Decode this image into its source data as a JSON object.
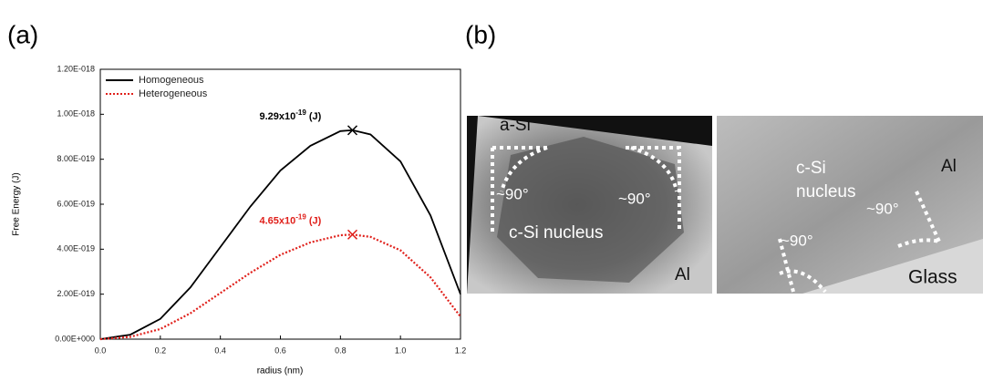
{
  "chart_data": {
    "type": "line",
    "panel_label": "(a)",
    "xlabel": "radius (nm)",
    "ylabel": "Free Energy (J)",
    "x": [
      0,
      0.1,
      0.2,
      0.3,
      0.4,
      0.5,
      0.6,
      0.7,
      0.8,
      0.84,
      0.9,
      1.0,
      1.1,
      1.2
    ],
    "series": [
      {
        "name": "Homogeneous",
        "color": "#000000",
        "dash": false,
        "values": [
          0,
          2e-20,
          9e-20,
          2.3e-19,
          4.1e-19,
          5.9e-19,
          7.5e-19,
          8.6e-19,
          9.25e-19,
          9.29e-19,
          9.1e-19,
          7.9e-19,
          5.5e-19,
          2e-19
        ]
      },
      {
        "name": "Heterogeneous",
        "color": "#e0201b",
        "dash": true,
        "values": [
          0,
          1e-20,
          4.5e-20,
          1.15e-19,
          2.05e-19,
          2.95e-19,
          3.75e-19,
          4.3e-19,
          4.62e-19,
          4.65e-19,
          4.55e-19,
          3.95e-19,
          2.75e-19,
          1e-19
        ]
      }
    ],
    "annotations": [
      {
        "x": 0.84,
        "y": 9.29e-19,
        "mantissa": "9.29x10",
        "exponent": "-19",
        "unit": "(J)",
        "color": "#000000"
      },
      {
        "x": 0.84,
        "y": 4.65e-19,
        "mantissa": "4.65x10",
        "exponent": "-19",
        "unit": "(J)",
        "color": "#e0201b"
      }
    ],
    "xlim": [
      0,
      1.2
    ],
    "xticks": [
      {
        "value": 0,
        "label": "0.0"
      },
      0.2,
      0.4,
      0.6,
      0.8,
      {
        "value": 1,
        "label": "1.0"
      },
      1.2
    ],
    "ylim": [
      0,
      1.2e-18
    ],
    "yticks": [
      {
        "value": 0,
        "label": "0.00E+000"
      },
      {
        "value": 2e-19,
        "label": "2.00E-019"
      },
      {
        "value": 4e-19,
        "label": "4.00E-019"
      },
      {
        "value": 6e-19,
        "label": "6.00E-019"
      },
      {
        "value": 8e-19,
        "label": "8.00E-019"
      },
      {
        "value": 1e-18,
        "label": "1.00E-018"
      },
      {
        "value": 1.2e-18,
        "label": "1.20E-018"
      }
    ],
    "legend": "upper left",
    "grid": false
  },
  "panel_b": {
    "panel_label": "(b)",
    "left_image": {
      "labels": [
        "a-Si",
        "~90°",
        "~90°",
        "c-Si nucleus",
        "Al"
      ]
    },
    "right_image": {
      "labels": [
        "c-Si",
        "nucleus",
        "Al",
        "~90°",
        "~90°",
        "Glass"
      ]
    }
  }
}
